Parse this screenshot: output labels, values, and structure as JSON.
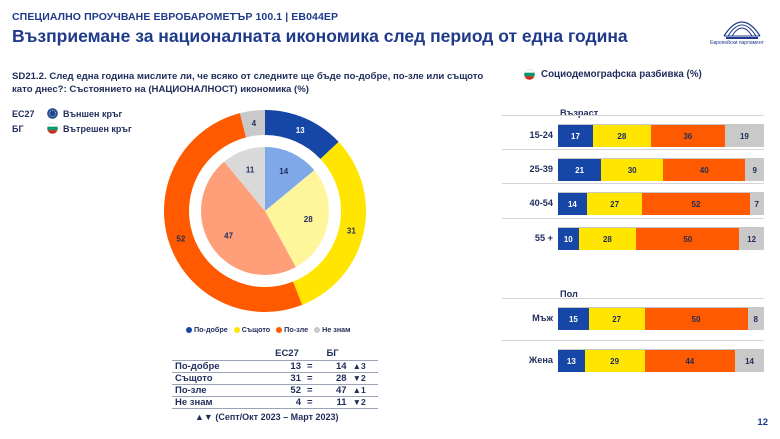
{
  "header": {
    "survey_label": "СПЕЦИАЛНО ПРОУЧВАНЕ ЕВРОБАРОМЕТЪР 100.1 | EB044EP",
    "title": "Възприемане за националната икономика след период от една година",
    "logo_text": "Европейски парламент",
    "page_number": "12"
  },
  "question": "SD21.2. След една година мислите ли, че всяко от следните ще бъде по-добре, по-зле или същото като днес?: Състоянието на (НАЦИОНАЛНОСТ) икономика (%)",
  "ring_legend": [
    {
      "code": "ЕС27",
      "label": "Външен кръг",
      "icon": "eu-flag-icon"
    },
    {
      "code": "БГ",
      "label": "Вътрешен кръг",
      "icon": "bulgaria-flag-icon"
    }
  ],
  "colors": {
    "better": "#1747a6",
    "same": "#ffe500",
    "worse": "#ff5a00",
    "dont_know": "#c9c9c9",
    "better_light": "#7fa8e8",
    "same_light": "#fff59a",
    "worse_light": "#ff9f7a",
    "dont_know_light": "#d9d9d9"
  },
  "category_legend": [
    "По-добре",
    "Същото",
    "По-зле",
    "Не знам"
  ],
  "comparison_table": {
    "headers": [
      "ЕС27",
      "БГ"
    ],
    "rows": [
      {
        "label": "По-добре",
        "eu": "13",
        "eq": "=",
        "bg": "14",
        "delta": "▲3"
      },
      {
        "label": "Същото",
        "eu": "31",
        "eq": "=",
        "bg": "28",
        "delta": "▼2"
      },
      {
        "label": "По-зле",
        "eu": "52",
        "eq": "=",
        "bg": "47",
        "delta": "▲1"
      },
      {
        "label": "Не знам",
        "eu": "4",
        "eq": "=",
        "bg": "11",
        "delta": "▼2"
      }
    ]
  },
  "footnote": "▲▼ (Септ/Окт 2023 – Март 2023)",
  "socio": {
    "title": "Социодемографска разбивка (%)",
    "age_title": "Възраст",
    "gender_title": "Пол"
  },
  "chart_data": [
    {
      "type": "pie",
      "name": "ЕС27",
      "categories": [
        "По-добре",
        "Същото",
        "По-зле",
        "Не знам"
      ],
      "values": [
        13,
        31,
        52,
        4
      ]
    },
    {
      "type": "pie",
      "name": "БГ",
      "categories": [
        "По-добре",
        "Същото",
        "По-зле",
        "Не знам"
      ],
      "values": [
        14,
        28,
        47,
        11
      ]
    },
    {
      "type": "bar",
      "orientation": "horizontal-stacked",
      "group": "Възраст",
      "categories": [
        "15-24",
        "25-39",
        "40-54",
        "55 +"
      ],
      "series": [
        {
          "name": "По-добре",
          "values": [
            17,
            21,
            14,
            10
          ]
        },
        {
          "name": "Същото",
          "values": [
            28,
            30,
            27,
            28
          ]
        },
        {
          "name": "По-зле",
          "values": [
            36,
            40,
            52,
            50
          ]
        },
        {
          "name": "Не знам",
          "values": [
            19,
            9,
            7,
            12
          ]
        }
      ]
    },
    {
      "type": "bar",
      "orientation": "horizontal-stacked",
      "group": "Пол",
      "categories": [
        "Мъж",
        "Жена"
      ],
      "series": [
        {
          "name": "По-добре",
          "values": [
            15,
            13
          ]
        },
        {
          "name": "Същото",
          "values": [
            27,
            29
          ]
        },
        {
          "name": "По-зле",
          "values": [
            50,
            44
          ]
        },
        {
          "name": "Не знам",
          "values": [
            8,
            14
          ]
        }
      ]
    }
  ]
}
